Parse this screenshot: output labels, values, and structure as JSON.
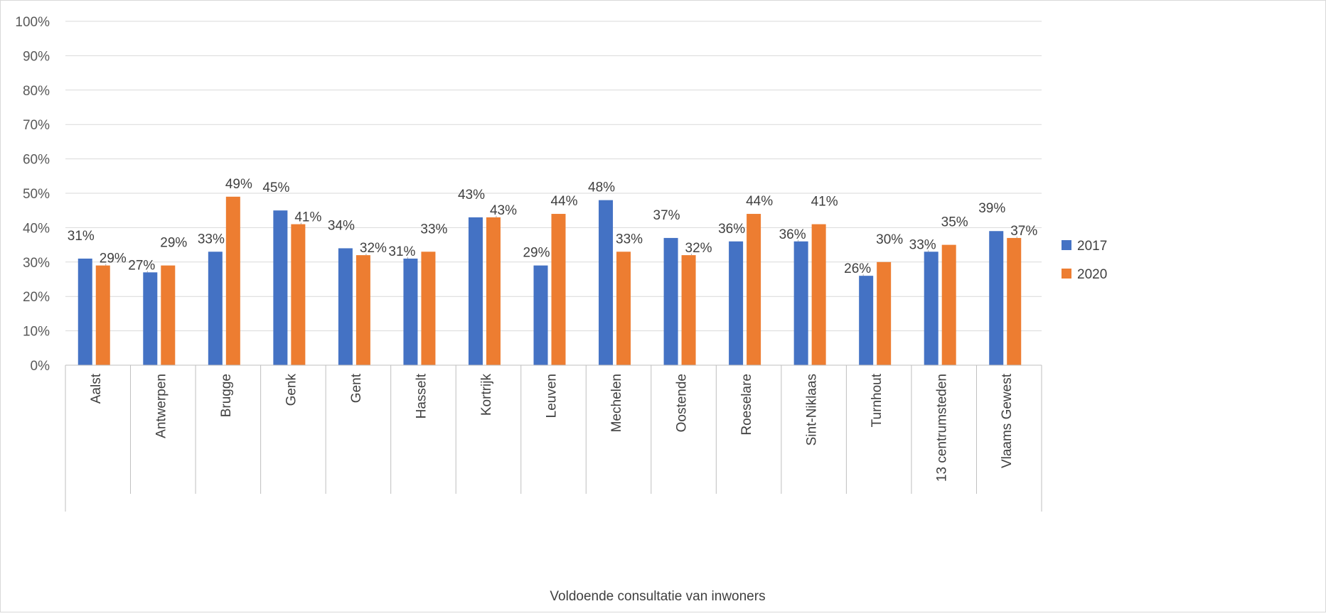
{
  "chart_data": {
    "type": "bar",
    "title": "",
    "xlabel": "Voldoende consultatie van inwoners",
    "ylabel": "",
    "ylim": [
      0,
      1
    ],
    "yticks": [
      "0%",
      "10%",
      "20%",
      "30%",
      "40%",
      "50%",
      "60%",
      "70%",
      "80%",
      "90%",
      "100%"
    ],
    "grid": true,
    "legend_position": "right",
    "categories": [
      "Aalst",
      "Antwerpen",
      "Brugge",
      "Genk",
      "Gent",
      "Hasselt",
      "Kortrijk",
      "Leuven",
      "Mechelen",
      "Oostende",
      "Roeselare",
      "Sint-Niklaas",
      "Turnhout",
      "13 centrumsteden",
      "Vlaams Gewest"
    ],
    "series": [
      {
        "name": "2017",
        "color": "#4472c4",
        "values": [
          0.31,
          0.27,
          0.33,
          0.45,
          0.34,
          0.31,
          0.43,
          0.29,
          0.48,
          0.37,
          0.36,
          0.36,
          0.26,
          0.33,
          0.39
        ],
        "labels": [
          "31%",
          "27%",
          "33%",
          "45%",
          "34%",
          "31%",
          "43%",
          "29%",
          "48%",
          "37%",
          "36%",
          "36%",
          "26%",
          "33%",
          "39%"
        ]
      },
      {
        "name": "2020",
        "color": "#ed7d31",
        "values": [
          0.29,
          0.29,
          0.49,
          0.41,
          0.32,
          0.33,
          0.43,
          0.44,
          0.33,
          0.32,
          0.44,
          0.41,
          0.3,
          0.35,
          0.37
        ],
        "labels": [
          "29%",
          "29%",
          "49%",
          "41%",
          "32%",
          "33%",
          "43%",
          "44%",
          "33%",
          "32%",
          "44%",
          "41%",
          "30%",
          "35%",
          "37%"
        ]
      }
    ]
  }
}
